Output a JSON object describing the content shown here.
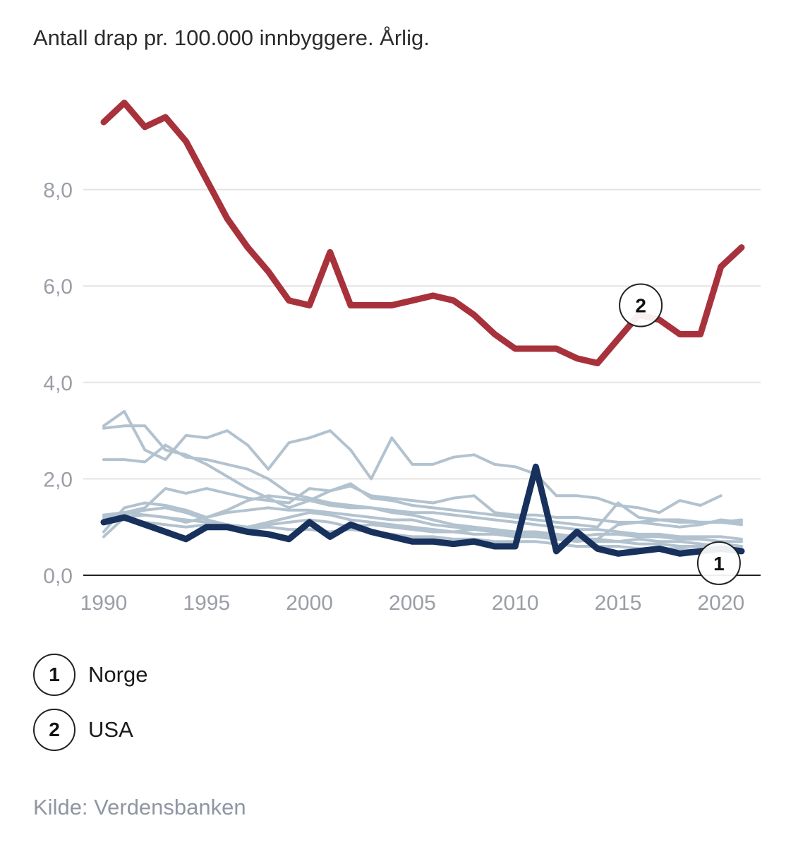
{
  "title": "Antall drap pr. 100.000 innbyggere. Årlig.",
  "source": "Kilde: Verdensbanken",
  "legend": [
    {
      "number": "1",
      "label": "Norge"
    },
    {
      "number": "2",
      "label": "USA"
    }
  ],
  "chart_data": {
    "type": "line",
    "xlim": [
      1990,
      2021
    ],
    "ylim": [
      0,
      10
    ],
    "x_ticks": [
      1990,
      1995,
      2000,
      2005,
      2010,
      2015,
      2020
    ],
    "x_tick_labels": [
      "1990",
      "1995",
      "2000",
      "2005",
      "2010",
      "2015",
      "2020"
    ],
    "y_ticks": [
      0,
      2,
      4,
      6,
      8
    ],
    "y_tick_labels": [
      "0,0",
      "2,0",
      "4,0",
      "6,0",
      "8,0"
    ],
    "grid": true,
    "colors": {
      "usa": "#a8323c",
      "norge": "#17315c",
      "other": "#b2c2cf",
      "grid": "#e4e4e4",
      "axis": "#222222",
      "tick": "#9a9ea6"
    },
    "series": [
      {
        "name": "USA",
        "marker": "2",
        "highlight": "usa",
        "x": [
          1990,
          1991,
          1992,
          1993,
          1994,
          1995,
          1996,
          1997,
          1998,
          1999,
          2000,
          2001,
          2002,
          2003,
          2004,
          2005,
          2006,
          2007,
          2008,
          2009,
          2010,
          2011,
          2012,
          2013,
          2014,
          2015,
          2016,
          2017,
          2018,
          2019,
          2020,
          2021
        ],
        "values": [
          9.4,
          9.8,
          9.3,
          9.5,
          9.0,
          8.2,
          7.4,
          6.8,
          6.3,
          5.7,
          5.6,
          6.7,
          5.6,
          5.6,
          5.6,
          5.7,
          5.8,
          5.7,
          5.4,
          5.0,
          4.7,
          4.7,
          4.7,
          4.5,
          4.4,
          4.9,
          5.4,
          5.3,
          5.0,
          5.0,
          6.4,
          6.8
        ]
      },
      {
        "name": "Norge",
        "marker": "1",
        "highlight": "norge",
        "x": [
          1990,
          1991,
          1992,
          1993,
          1994,
          1995,
          1996,
          1997,
          1998,
          1999,
          2000,
          2001,
          2002,
          2003,
          2004,
          2005,
          2006,
          2007,
          2008,
          2009,
          2010,
          2011,
          2012,
          2013,
          2014,
          2015,
          2016,
          2017,
          2018,
          2019,
          2020,
          2021
        ],
        "values": [
          1.1,
          1.2,
          1.05,
          0.9,
          0.75,
          1.0,
          1.0,
          0.9,
          0.85,
          0.75,
          1.1,
          0.8,
          1.05,
          0.9,
          0.8,
          0.7,
          0.7,
          0.65,
          0.7,
          0.6,
          0.6,
          2.25,
          0.5,
          0.9,
          0.55,
          0.45,
          0.5,
          0.55,
          0.45,
          0.5,
          0.55,
          0.5
        ]
      },
      {
        "highlight": "other",
        "x": [
          1990,
          1991,
          1992,
          1993,
          1994,
          1995,
          1996,
          1997,
          1998,
          1999,
          2000,
          2001,
          2002,
          2003,
          2004,
          2005,
          2006,
          2007,
          2008,
          2009,
          2010,
          2011,
          2012,
          2013,
          2014,
          2015,
          2016,
          2017,
          2018,
          2019,
          2020
        ],
        "values": [
          3.1,
          3.4,
          2.6,
          2.4,
          2.9,
          2.85,
          3.0,
          2.7,
          2.2,
          2.75,
          2.85,
          3.0,
          2.6,
          2.0,
          2.85,
          2.3,
          2.3,
          2.45,
          2.5,
          2.3,
          2.25,
          2.1,
          1.65,
          1.65,
          1.6,
          1.45,
          1.4,
          1.3,
          1.55,
          1.45,
          1.65
        ]
      },
      {
        "highlight": "other",
        "x": [
          1990,
          1991,
          1992,
          1993,
          1994,
          1995,
          1996,
          1997,
          1998,
          1999,
          2000,
          2001,
          2002,
          2003,
          2004,
          2005,
          2006,
          2007,
          2008,
          2009,
          2010,
          2011,
          2012,
          2013,
          2014,
          2015,
          2016,
          2017,
          2018,
          2019,
          2020,
          2021
        ],
        "values": [
          3.05,
          3.1,
          3.1,
          2.6,
          2.5,
          2.3,
          2.05,
          1.8,
          1.6,
          1.4,
          1.55,
          1.75,
          1.85,
          1.65,
          1.6,
          1.55,
          1.5,
          1.6,
          1.65,
          1.3,
          1.25,
          1.25,
          1.2,
          1.2,
          1.15,
          1.1,
          1.1,
          1.15,
          1.15,
          1.1,
          1.1,
          1.15
        ]
      },
      {
        "highlight": "other",
        "x": [
          1990,
          1991,
          1992,
          1993,
          1994,
          1995,
          1996,
          1997,
          1998,
          1999,
          2000,
          2001,
          2002,
          2003,
          2004,
          2005,
          2006,
          2007,
          2008,
          2009,
          2010,
          2011,
          2012,
          2013,
          2014,
          2015,
          2016,
          2017,
          2018,
          2019,
          2020,
          2021
        ],
        "values": [
          2.4,
          2.4,
          2.35,
          2.7,
          2.45,
          2.4,
          2.3,
          2.2,
          2.0,
          1.7,
          1.6,
          1.5,
          1.45,
          1.4,
          1.35,
          1.3,
          1.3,
          1.25,
          1.2,
          1.15,
          1.1,
          1.05,
          1.0,
          0.95,
          0.95,
          0.9,
          0.85,
          0.85,
          0.8,
          0.8,
          0.8,
          0.75
        ]
      },
      {
        "highlight": "other",
        "x": [
          1990,
          1991,
          1992,
          1993,
          1994,
          1995,
          1996,
          1997,
          1998,
          1999,
          2000,
          2001,
          2002,
          2003,
          2004,
          2005,
          2006,
          2007,
          2008,
          2009,
          2010,
          2011,
          2012,
          2013,
          2014,
          2015,
          2016,
          2017,
          2018,
          2019,
          2020,
          2021
        ],
        "values": [
          1.2,
          1.3,
          1.4,
          1.8,
          1.7,
          1.8,
          1.7,
          1.6,
          1.55,
          1.5,
          1.8,
          1.75,
          1.9,
          1.6,
          1.55,
          1.45,
          1.4,
          1.35,
          1.3,
          1.25,
          1.2,
          1.15,
          1.1,
          1.05,
          1.0,
          1.5,
          1.2,
          1.15,
          1.1,
          1.1,
          1.1,
          1.05
        ]
      },
      {
        "highlight": "other",
        "x": [
          1990,
          1991,
          1992,
          1993,
          1994,
          1995,
          1996,
          1997,
          1998,
          1999,
          2000,
          2001,
          2002,
          2003,
          2004,
          2005,
          2006,
          2007,
          2008,
          2009,
          2010,
          2011,
          2012,
          2013,
          2014,
          2015,
          2016,
          2017,
          2018,
          2019,
          2020,
          2021
        ],
        "values": [
          0.9,
          1.4,
          1.5,
          1.45,
          1.35,
          1.2,
          1.35,
          1.55,
          1.65,
          1.6,
          1.55,
          1.45,
          1.4,
          1.4,
          1.3,
          1.25,
          1.15,
          1.05,
          1.0,
          0.95,
          0.9,
          0.9,
          0.85,
          0.8,
          0.85,
          0.85,
          0.8,
          0.8,
          0.75,
          0.75,
          0.7,
          0.7
        ]
      },
      {
        "highlight": "other",
        "x": [
          1990,
          1991,
          1992,
          1993,
          1994,
          1995,
          1996,
          1997,
          1998,
          1999,
          2000,
          2001,
          2002,
          2003,
          2004,
          2005,
          2006,
          2007,
          2008,
          2009,
          2010,
          2011,
          2012,
          2013,
          2014,
          2015,
          2016,
          2017,
          2018,
          2019,
          2020,
          2021
        ],
        "values": [
          1.25,
          1.3,
          1.25,
          1.2,
          1.1,
          1.2,
          1.3,
          1.35,
          1.4,
          1.35,
          1.35,
          1.3,
          1.25,
          1.2,
          1.15,
          1.15,
          1.05,
          1.0,
          0.95,
          0.9,
          0.9,
          0.85,
          0.8,
          0.75,
          0.75,
          0.7,
          0.65,
          0.65,
          0.6,
          0.6,
          0.65,
          0.6
        ]
      },
      {
        "highlight": "other",
        "x": [
          1990,
          1991,
          1992,
          1993,
          1994,
          1995,
          1996,
          1997,
          1998,
          1999,
          2000,
          2001,
          2002,
          2003,
          2004,
          2005,
          2006,
          2007,
          2008,
          2009,
          2010,
          2011,
          2012,
          2013,
          2014,
          2015,
          2016,
          2017,
          2018,
          2019,
          2020,
          2021
        ],
        "values": [
          1.15,
          1.25,
          1.35,
          1.4,
          1.3,
          1.15,
          1.05,
          1.0,
          1.1,
          1.2,
          1.3,
          1.25,
          1.15,
          1.1,
          1.05,
          1.0,
          0.95,
          0.9,
          0.95,
          0.9,
          0.85,
          0.8,
          0.8,
          0.75,
          0.7,
          0.7,
          0.75,
          0.7,
          0.7,
          0.65,
          0.6,
          0.6
        ]
      },
      {
        "highlight": "other",
        "x": [
          1990,
          1991,
          1992,
          1993,
          1994,
          1995,
          1996,
          1997,
          1998,
          1999,
          2000,
          2001,
          2002,
          2003,
          2004,
          2005,
          2006,
          2007,
          2008,
          2009,
          2010,
          2011,
          2012,
          2013,
          2014,
          2015,
          2016,
          2017,
          2018,
          2019,
          2020,
          2021
        ],
        "values": [
          0.8,
          1.2,
          1.25,
          1.2,
          1.15,
          1.1,
          1.05,
          1.0,
          1.05,
          1.1,
          1.15,
          1.1,
          1.0,
          1.05,
          1.0,
          0.95,
          0.9,
          0.9,
          0.85,
          0.85,
          0.8,
          0.8,
          0.75,
          0.7,
          0.75,
          1.05,
          1.1,
          1.05,
          1.0,
          1.05,
          1.15,
          1.1
        ]
      },
      {
        "highlight": "other",
        "x": [
          1990,
          1991,
          1992,
          1993,
          1994,
          1995,
          1996,
          1997,
          1998,
          1999,
          2000,
          2001,
          2002,
          2003,
          2004,
          2005,
          2006,
          2007,
          2008,
          2009,
          2010,
          2011,
          2012,
          2013,
          2014,
          2015,
          2016,
          2017,
          2018,
          2019,
          2020,
          2021
        ],
        "values": [
          1.1,
          1.15,
          1.1,
          1.05,
          1.0,
          1.05,
          1.0,
          0.95,
          1.0,
          0.95,
          0.95,
          0.9,
          0.95,
          0.9,
          0.85,
          0.8,
          0.8,
          0.75,
          0.75,
          0.7,
          0.7,
          0.7,
          0.65,
          0.6,
          0.6,
          0.6,
          0.55,
          0.55,
          0.55,
          0.5,
          0.55,
          0.5
        ]
      }
    ],
    "marker_positions": [
      {
        "label": "1",
        "x": 2019.9,
        "y": 0.25
      },
      {
        "label": "2",
        "x": 2016.1,
        "y": 5.6
      }
    ]
  }
}
